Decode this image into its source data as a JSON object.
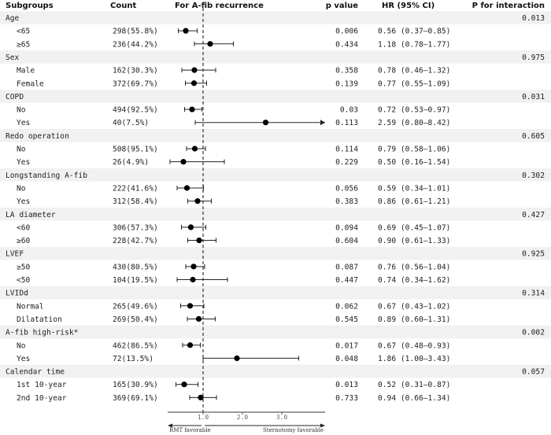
{
  "chart_data": {
    "type": "forest",
    "title": "For A-fib recurrence",
    "headers": {
      "subgroups": "Subgroups",
      "count": "Count",
      "title": "For A-fib recurrence",
      "pvalue": "p value",
      "hr": "HR (95% CI)",
      "pint": "P for interaction"
    },
    "x_axis": {
      "range": [
        0.1,
        4.1
      ],
      "reference": 1.0,
      "ticks": [
        "1.0",
        "2.0",
        "3.0"
      ],
      "left_note": "RMT favorable",
      "right_note": "Sternotomy favorable"
    },
    "groups": [
      {
        "name": "Age",
        "p_interaction": "0.013",
        "rows": [
          {
            "label": "<65",
            "count": "298(55.8%)",
            "p": "0.006",
            "hr_text": "0.56 (0.37–0.85)",
            "hr": 0.56,
            "lo": 0.37,
            "hi": 0.85
          },
          {
            "label": "≥65",
            "count": "236(44.2%)",
            "p": "0.434",
            "hr_text": "1.18 (0.78–1.77)",
            "hr": 1.18,
            "lo": 0.78,
            "hi": 1.77
          }
        ]
      },
      {
        "name": "Sex",
        "p_interaction": "0.975",
        "rows": [
          {
            "label": "Male",
            "count": "162(30.3%)",
            "p": "0.358",
            "hr_text": "0.78 (0.46–1.32)",
            "hr": 0.78,
            "lo": 0.46,
            "hi": 1.32
          },
          {
            "label": "Female",
            "count": "372(69.7%)",
            "p": "0.139",
            "hr_text": "0.77 (0.55–1.09)",
            "hr": 0.77,
            "lo": 0.55,
            "hi": 1.09
          }
        ]
      },
      {
        "name": "COPD",
        "p_interaction": "0.031",
        "rows": [
          {
            "label": "No",
            "count": "494(92.5%)",
            "p": "0.03",
            "hr_text": "0.72 (0.53–0.97)",
            "hr": 0.72,
            "lo": 0.53,
            "hi": 0.97
          },
          {
            "label": "Yes",
            "count": "40(7.5%)",
            "p": "0.113",
            "hr_text": "2.59 (0.80–8.42)",
            "hr": 2.59,
            "lo": 0.8,
            "hi": 8.42
          }
        ]
      },
      {
        "name": "Redo operation",
        "p_interaction": "0.605",
        "rows": [
          {
            "label": "No",
            "count": "508(95.1%)",
            "p": "0.114",
            "hr_text": "0.79 (0.58–1.06)",
            "hr": 0.79,
            "lo": 0.58,
            "hi": 1.06
          },
          {
            "label": "Yes",
            "count": "26(4.9%)",
            "p": "0.229",
            "hr_text": "0.50 (0.16–1.54)",
            "hr": 0.5,
            "lo": 0.16,
            "hi": 1.54
          }
        ]
      },
      {
        "name": "Longstanding A-fib",
        "p_interaction": "0.302",
        "rows": [
          {
            "label": "No",
            "count": "222(41.6%)",
            "p": "0.056",
            "hr_text": "0.59 (0.34–1.01)",
            "hr": 0.59,
            "lo": 0.34,
            "hi": 1.01
          },
          {
            "label": "Yes",
            "count": "312(58.4%)",
            "p": "0.383",
            "hr_text": "0.86 (0.61–1.21)",
            "hr": 0.86,
            "lo": 0.61,
            "hi": 1.21
          }
        ]
      },
      {
        "name": "LA diameter",
        "p_interaction": "0.427",
        "rows": [
          {
            "label": "<60",
            "count": "306(57.3%)",
            "p": "0.094",
            "hr_text": "0.69 (0.45–1.07)",
            "hr": 0.69,
            "lo": 0.45,
            "hi": 1.07
          },
          {
            "label": "≥60",
            "count": "228(42.7%)",
            "p": "0.604",
            "hr_text": "0.90 (0.61–1.33)",
            "hr": 0.9,
            "lo": 0.61,
            "hi": 1.33
          }
        ]
      },
      {
        "name": "LVEF",
        "p_interaction": "0.925",
        "rows": [
          {
            "label": "≥50",
            "count": "430(80.5%)",
            "p": "0.087",
            "hr_text": "0.76 (0.56–1.04)",
            "hr": 0.76,
            "lo": 0.56,
            "hi": 1.04
          },
          {
            "label": "<50",
            "count": "104(19.5%)",
            "p": "0.447",
            "hr_text": "0.74 (0.34–1.62)",
            "hr": 0.74,
            "lo": 0.34,
            "hi": 1.62
          }
        ]
      },
      {
        "name": "LVIDd",
        "p_interaction": "0.314",
        "rows": [
          {
            "label": "Normal",
            "count": "265(49.6%)",
            "p": "0.062",
            "hr_text": "0.67 (0.43–1.02)",
            "hr": 0.67,
            "lo": 0.43,
            "hi": 1.02
          },
          {
            "label": "Dilatation",
            "count": "269(50.4%)",
            "p": "0.545",
            "hr_text": "0.89 (0.60–1.31)",
            "hr": 0.89,
            "lo": 0.6,
            "hi": 1.31
          }
        ]
      },
      {
        "name": "A-fib high-risk*",
        "p_interaction": "0.002",
        "rows": [
          {
            "label": "No",
            "count": "462(86.5%)",
            "p": "0.017",
            "hr_text": "0.67 (0.48–0.93)",
            "hr": 0.67,
            "lo": 0.48,
            "hi": 0.93
          },
          {
            "label": "Yes",
            "count": "72(13.5%)",
            "p": "0.048",
            "hr_text": "1.86 (1.00–3.43)",
            "hr": 1.86,
            "lo": 1.0,
            "hi": 3.43
          }
        ]
      },
      {
        "name": "Calendar time",
        "p_interaction": "0.057",
        "rows": [
          {
            "label": "1st 10-year",
            "count": "165(30.9%)",
            "p": "0.013",
            "hr_text": "0.52 (0.31–0.87)",
            "hr": 0.52,
            "lo": 0.31,
            "hi": 0.87
          },
          {
            "label": "2nd 10-year",
            "count": "369(69.1%)",
            "p": "0.733",
            "hr_text": "0.94 (0.66–1.34)",
            "hr": 0.94,
            "lo": 0.66,
            "hi": 1.34
          }
        ]
      }
    ]
  }
}
